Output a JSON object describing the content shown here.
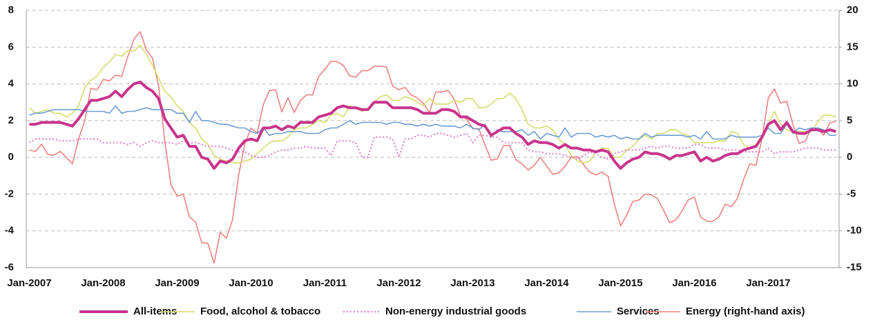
{
  "chart_data": {
    "type": "line",
    "categories": [
      "Jan-2007",
      null,
      null,
      null,
      null,
      null,
      null,
      null,
      null,
      null,
      null,
      null,
      "Jan-2008",
      null,
      null,
      null,
      null,
      null,
      null,
      null,
      null,
      null,
      null,
      null,
      "Jan-2009",
      null,
      null,
      null,
      null,
      null,
      null,
      null,
      null,
      null,
      null,
      null,
      "Jan-2010",
      null,
      null,
      null,
      null,
      null,
      null,
      null,
      null,
      null,
      null,
      null,
      "Jan-2011",
      null,
      null,
      null,
      null,
      null,
      null,
      null,
      null,
      null,
      null,
      null,
      "Jan-2012",
      null,
      null,
      null,
      null,
      null,
      null,
      null,
      null,
      null,
      null,
      null,
      "Jan-2013",
      null,
      null,
      null,
      null,
      null,
      null,
      null,
      null,
      null,
      null,
      null,
      "Jan-2014",
      null,
      null,
      null,
      null,
      null,
      null,
      null,
      null,
      null,
      null,
      null,
      "Jan-2015",
      null,
      null,
      null,
      null,
      null,
      null,
      null,
      null,
      null,
      null,
      null,
      "Jan-2016",
      null,
      null,
      null,
      null,
      null,
      null,
      null,
      null,
      null,
      null,
      null,
      "Jan-2017",
      null,
      null,
      null,
      null,
      null,
      null,
      null,
      null,
      null,
      null,
      null
    ],
    "ylim": [
      -6,
      8
    ],
    "yticks": [
      -6,
      -4,
      -2,
      0,
      2,
      4,
      6,
      8
    ],
    "y2lim": [
      -15,
      20
    ],
    "y2ticks": [
      -15,
      -10,
      -5,
      0,
      5,
      10,
      15,
      20
    ],
    "grid": true,
    "legend": "bottom",
    "series": [
      {
        "name": "All-items",
        "color": "#c8348c",
        "line_width": 4,
        "dash": "solid",
        "values": [
          1.8,
          1.8,
          1.9,
          1.9,
          1.9,
          1.9,
          1.8,
          1.7,
          2.1,
          2.6,
          3.1,
          3.1,
          3.2,
          3.3,
          3.6,
          3.3,
          3.7,
          4.0,
          4.1,
          3.8,
          3.6,
          3.2,
          2.1,
          1.6,
          1.1,
          1.2,
          0.6,
          0.6,
          0.0,
          -0.1,
          -0.6,
          -0.2,
          -0.3,
          -0.1,
          0.5,
          0.9,
          1.0,
          0.9,
          1.6,
          1.6,
          1.7,
          1.5,
          1.7,
          1.6,
          1.9,
          1.9,
          1.9,
          2.2,
          2.3,
          2.4,
          2.7,
          2.8,
          2.7,
          2.7,
          2.6,
          2.6,
          3.0,
          3.0,
          3.0,
          2.7,
          2.7,
          2.7,
          2.7,
          2.6,
          2.4,
          2.4,
          2.4,
          2.6,
          2.6,
          2.5,
          2.2,
          2.2,
          2.0,
          1.8,
          1.7,
          1.2,
          1.4,
          1.6,
          1.6,
          1.3,
          1.1,
          0.7,
          0.9,
          0.8,
          0.8,
          0.7,
          0.5,
          0.7,
          0.5,
          0.5,
          0.4,
          0.4,
          0.3,
          0.4,
          0.3,
          -0.2,
          -0.6,
          -0.3,
          -0.1,
          0.0,
          0.3,
          0.2,
          0.2,
          0.1,
          -0.1,
          0.1,
          0.1,
          0.2,
          0.3,
          -0.2,
          0.0,
          -0.2,
          -0.1,
          0.1,
          0.2,
          0.2,
          0.4,
          0.5,
          0.6,
          1.1,
          1.8,
          2.0,
          1.5,
          1.9,
          1.4,
          1.3,
          1.3,
          1.5,
          1.5,
          1.4,
          1.5,
          1.4
        ]
      },
      {
        "name": "Food, alcohol & tobacco",
        "color": "#d5dc6a",
        "line_width": 1.6,
        "dash": "solid",
        "values": [
          2.7,
          2.4,
          2.5,
          2.6,
          2.4,
          2.4,
          2.2,
          2.4,
          2.8,
          3.8,
          4.2,
          4.4,
          4.9,
          5.2,
          5.6,
          5.5,
          5.8,
          5.8,
          6.1,
          5.6,
          5.0,
          4.3,
          3.6,
          3.3,
          2.8,
          2.5,
          1.9,
          1.6,
          1.0,
          0.7,
          0.1,
          -0.1,
          -0.2,
          -0.3,
          -0.3,
          -0.2,
          -0.1,
          0.2,
          0.5,
          0.8,
          0.9,
          0.9,
          1.1,
          1.5,
          1.6,
          1.6,
          1.8,
          2.0,
          1.9,
          2.3,
          2.4,
          2.2,
          2.8,
          2.7,
          2.5,
          2.6,
          3.0,
          3.3,
          3.4,
          3.1,
          3.1,
          3.3,
          3.2,
          3.0,
          2.8,
          3.2,
          2.9,
          2.9,
          2.9,
          3.1,
          3.0,
          3.2,
          3.2,
          2.7,
          2.7,
          2.9,
          3.2,
          3.2,
          3.5,
          3.2,
          2.6,
          1.8,
          1.6,
          1.6,
          1.7,
          1.5,
          1.0,
          0.7,
          0.1,
          -0.2,
          -0.3,
          -0.2,
          0.3,
          0.5,
          0.5,
          0.0,
          0.0,
          0.4,
          0.6,
          1.0,
          1.2,
          1.0,
          1.3,
          1.3,
          1.5,
          1.5,
          1.3,
          1.2,
          0.8,
          0.8,
          0.8,
          0.8,
          0.9,
          0.9,
          1.4,
          1.3,
          0.7,
          0.5,
          0.7,
          1.2,
          1.8,
          2.5,
          1.8,
          1.5,
          1.4,
          1.4,
          1.4,
          1.4,
          1.9,
          2.3,
          2.3,
          2.2
        ]
      },
      {
        "name": "Non-energy industrial goods",
        "color": "#e080c4",
        "line_width": 2.2,
        "dash": "dotted",
        "values": [
          0.8,
          1.0,
          1.0,
          1.0,
          1.0,
          0.9,
          0.9,
          0.9,
          1.0,
          1.0,
          1.0,
          1.0,
          0.8,
          0.8,
          0.8,
          0.8,
          0.7,
          0.8,
          0.6,
          0.8,
          0.9,
          0.8,
          0.8,
          0.8,
          0.7,
          0.9,
          0.8,
          0.8,
          0.7,
          0.6,
          0.6,
          0.6,
          0.5,
          0.4,
          0.3,
          0.3,
          0.1,
          0.0,
          0.0,
          0.1,
          0.3,
          0.4,
          0.4,
          0.5,
          0.5,
          0.6,
          0.5,
          0.5,
          0.5,
          0.1,
          0.9,
          0.9,
          0.9,
          0.8,
          0.0,
          0.0,
          1.1,
          1.1,
          1.1,
          1.0,
          0.0,
          1.0,
          1.0,
          1.2,
          1.2,
          1.1,
          1.3,
          1.3,
          1.2,
          1.1,
          1.2,
          1.3,
          0.8,
          1.2,
          1.2,
          1.1,
          1.1,
          0.8,
          0.8,
          0.8,
          0.8,
          0.4,
          0.3,
          0.3,
          0.2,
          0.2,
          0.2,
          0.1,
          0.0,
          -0.1,
          0.1,
          0.3,
          0.2,
          0.0,
          -0.1,
          0.2,
          0.3,
          0.4,
          0.4,
          0.4,
          0.5,
          0.6,
          0.5,
          0.6,
          0.6,
          0.5,
          0.5,
          0.5,
          0.7,
          0.7,
          0.5,
          0.5,
          0.5,
          0.4,
          0.4,
          0.4,
          0.3,
          0.3,
          0.3,
          0.3,
          0.5,
          0.2,
          0.3,
          0.3,
          0.3,
          0.4,
          0.5,
          0.5,
          0.5,
          0.4,
          0.4,
          0.4
        ]
      },
      {
        "name": "Services",
        "color": "#6f9dd2",
        "line_width": 1.6,
        "dash": "solid",
        "values": [
          2.3,
          2.4,
          2.4,
          2.5,
          2.6,
          2.6,
          2.6,
          2.6,
          2.6,
          2.5,
          2.5,
          2.5,
          2.5,
          2.4,
          2.8,
          2.4,
          2.5,
          2.5,
          2.6,
          2.7,
          2.6,
          2.6,
          2.6,
          2.6,
          2.4,
          2.4,
          1.9,
          2.5,
          2.0,
          2.0,
          1.9,
          1.8,
          1.8,
          1.7,
          1.6,
          1.6,
          1.4,
          1.3,
          1.6,
          1.2,
          1.3,
          1.3,
          1.4,
          1.4,
          1.4,
          1.3,
          1.3,
          1.3,
          1.5,
          1.6,
          1.6,
          1.8,
          2.0,
          1.8,
          1.9,
          1.9,
          1.9,
          1.9,
          1.8,
          1.9,
          1.9,
          1.8,
          1.8,
          1.7,
          1.8,
          1.7,
          1.8,
          1.7,
          1.7,
          1.7,
          1.6,
          1.8,
          1.6,
          1.5,
          1.8,
          1.1,
          1.5,
          1.4,
          1.4,
          1.4,
          1.5,
          1.2,
          1.4,
          1.0,
          1.3,
          1.2,
          1.1,
          1.6,
          1.1,
          1.3,
          1.3,
          1.3,
          1.1,
          1.2,
          1.1,
          1.2,
          1.0,
          1.1,
          1.0,
          1.0,
          1.3,
          1.1,
          1.2,
          1.2,
          1.2,
          1.2,
          1.2,
          1.1,
          1.2,
          1.0,
          1.4,
          1.0,
          1.0,
          1.0,
          1.2,
          1.1,
          1.1,
          1.1,
          1.1,
          1.2,
          1.6,
          1.3,
          1.3,
          1.8,
          1.3,
          1.6,
          1.5,
          1.6,
          1.6,
          1.5,
          1.2,
          1.2
        ]
      },
      {
        "name": "Energy (right-hand axis)",
        "color": "#ef8080",
        "line_width": 1.6,
        "dash": "solid",
        "axis": "y2",
        "values": [
          1.0,
          0.8,
          1.8,
          0.4,
          0.3,
          0.8,
          0.0,
          -0.9,
          2.5,
          5.0,
          9.4,
          9.2,
          10.6,
          10.4,
          11.2,
          11.0,
          13.7,
          16.1,
          17.1,
          14.6,
          13.5,
          9.7,
          2.2,
          -3.7,
          -5.3,
          -5.0,
          -8.1,
          -8.8,
          -11.6,
          -11.7,
          -14.4,
          -10.2,
          -11.0,
          -8.5,
          -2.4,
          1.8,
          4.0,
          3.3,
          7.2,
          9.1,
          9.2,
          6.2,
          8.1,
          6.1,
          7.7,
          8.5,
          8.5,
          11.0,
          12.0,
          13.1,
          13.0,
          12.5,
          11.1,
          10.9,
          11.8,
          11.8,
          12.4,
          12.4,
          12.3,
          9.7,
          9.2,
          9.5,
          8.5,
          8.1,
          7.3,
          6.1,
          8.9,
          8.9,
          9.1,
          7.9,
          5.7,
          5.2,
          3.9,
          3.9,
          1.7,
          -0.4,
          -0.2,
          1.6,
          1.6,
          -0.3,
          -0.9,
          -1.7,
          -1.1,
          0.0,
          -1.2,
          -2.3,
          -2.1,
          -1.2,
          0.0,
          0.1,
          -1.0,
          -2.0,
          -2.4,
          -2.0,
          -2.6,
          -6.3,
          -9.3,
          -7.9,
          -6.0,
          -5.8,
          -5.0,
          -5.1,
          -5.6,
          -7.2,
          -8.9,
          -8.5,
          -7.3,
          -5.8,
          -5.4,
          -8.1,
          -8.7,
          -8.7,
          -8.1,
          -6.4,
          -6.7,
          -5.6,
          -3.0,
          -0.9,
          -1.1,
          2.6,
          8.1,
          9.3,
          7.4,
          7.6,
          4.5,
          1.9,
          2.2,
          4.0,
          3.9,
          3.0,
          4.7,
          4.9
        ]
      }
    ]
  }
}
